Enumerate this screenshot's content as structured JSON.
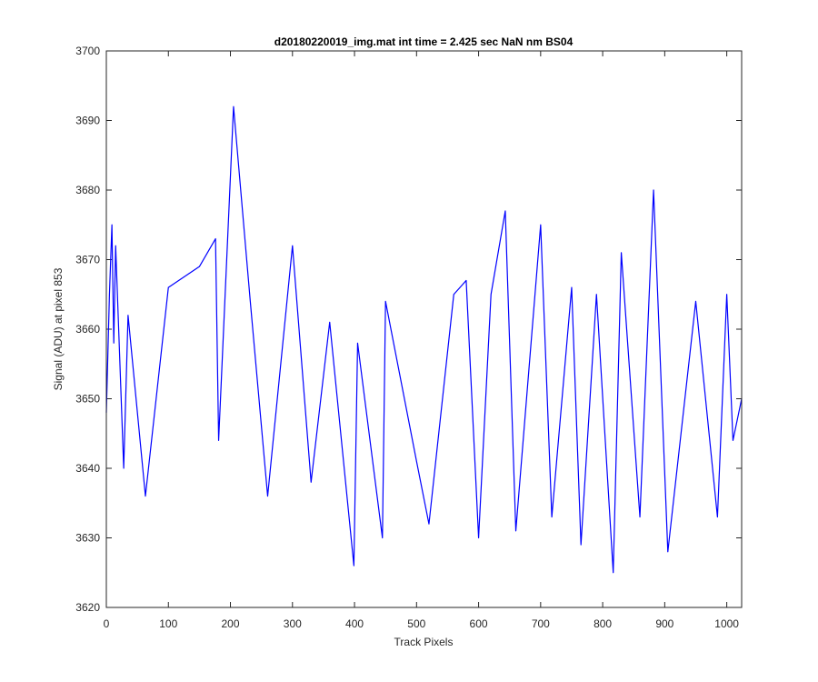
{
  "chart_data": {
    "type": "line",
    "title": "d20180220019_img.mat int time = 2.425 sec  NaN nm BS04",
    "xlabel": "Track Pixels",
    "ylabel": "Signal (ADU) at pixel 853",
    "xlim": [
      0,
      1024
    ],
    "ylim": [
      3620,
      3700
    ],
    "xticks": [
      0,
      100,
      200,
      300,
      400,
      500,
      600,
      700,
      800,
      900,
      1000
    ],
    "yticks": [
      3620,
      3630,
      3640,
      3650,
      3660,
      3670,
      3680,
      3690,
      3700
    ],
    "grid": false,
    "legend": "none",
    "color": "#0000ff",
    "series": [
      {
        "x": [
          0,
          5,
          9,
          12,
          15,
          28,
          35,
          63,
          100,
          150,
          176,
          181,
          205,
          232,
          260,
          300,
          330,
          360,
          399,
          405,
          445,
          450,
          500,
          520,
          560,
          580,
          600,
          620,
          643,
          660,
          700,
          718,
          750,
          765,
          790,
          817,
          830,
          860,
          882,
          905,
          950,
          985,
          1000,
          1010,
          1024
        ],
        "y": [
          3648,
          3665,
          3675,
          3658,
          3672,
          3640,
          3662,
          3636,
          3666,
          3669,
          3673,
          3644,
          3692,
          3664,
          3636,
          3672,
          3638,
          3661,
          3626,
          3658,
          3630,
          3664,
          3641,
          3632,
          3665,
          3667,
          3630,
          3665,
          3677,
          3631,
          3675,
          3633,
          3666,
          3629,
          3665,
          3625,
          3671,
          3633,
          3680,
          3628,
          3664,
          3633,
          3665,
          3644,
          3650
        ]
      }
    ]
  }
}
